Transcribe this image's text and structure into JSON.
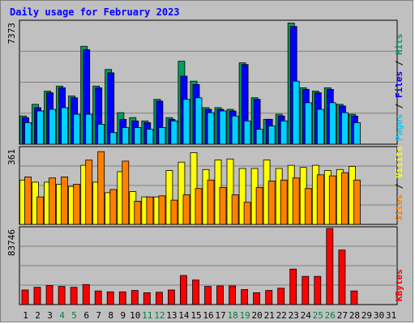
{
  "title": "Daily usage for February 2023",
  "colors": {
    "hits": "#00a060",
    "files": "#0000ff",
    "pages": "#00d0ff",
    "visits": "#ffff00",
    "sites": "#ff8000",
    "kbytes": "#ff0000",
    "weekend_label": "#008040",
    "weekday_label": "#000000"
  },
  "chart_data": [
    {
      "type": "bar",
      "panel": "top",
      "ymax_label": "7373",
      "ymax": 7373,
      "right_labels": [
        {
          "text": "Pages",
          "color": "#00d0ff"
        },
        {
          "text": " / ",
          "color": "#000000"
        },
        {
          "text": "Files",
          "color": "#0000ff"
        },
        {
          "text": " / ",
          "color": "#000000"
        },
        {
          "text": "Hits",
          "color": "#00a060"
        }
      ],
      "series": [
        {
          "name": "Hits",
          "values": [
            1700,
            2400,
            3200,
            3500,
            2900,
            5900,
            3500,
            4500,
            1900,
            1600,
            1400,
            2700,
            1600,
            5000,
            3800,
            2200,
            2200,
            2100,
            4900,
            2800,
            1500,
            1800,
            7300,
            3400,
            3200,
            3400,
            2400,
            1800
          ]
        },
        {
          "name": "Files",
          "values": [
            1600,
            2200,
            3100,
            3400,
            2800,
            5700,
            3400,
            4300,
            1500,
            1400,
            1300,
            2600,
            1500,
            4100,
            3600,
            2100,
            2100,
            2000,
            4800,
            2700,
            1500,
            1700,
            7100,
            3300,
            3100,
            3300,
            2300,
            1700
          ]
        },
        {
          "name": "Pages",
          "values": [
            1300,
            2000,
            2100,
            2200,
            1800,
            1800,
            1200,
            700,
            1000,
            1000,
            900,
            1000,
            1400,
            2700,
            2800,
            1900,
            2000,
            1700,
            1400,
            900,
            1100,
            1400,
            3800,
            2500,
            2100,
            2500,
            1900,
            1300
          ]
        }
      ]
    },
    {
      "type": "bar",
      "panel": "middle",
      "ymax_label": "361",
      "ymax": 361,
      "right_labels": [
        {
          "text": "Sites",
          "color": "#ff8000"
        },
        {
          "text": " / ",
          "color": "#000000"
        },
        {
          "text": "Visits",
          "color": "#ffff00"
        }
      ],
      "series": [
        {
          "name": "Visits",
          "values": [
            210,
            200,
            200,
            190,
            180,
            280,
            200,
            150,
            250,
            155,
            130,
            130,
            255,
            295,
            340,
            260,
            305,
            310,
            265,
            265,
            305,
            265,
            280,
            270,
            280,
            255,
            260,
            275
          ]
        },
        {
          "name": "Sites",
          "values": [
            225,
            130,
            220,
            225,
            190,
            305,
            345,
            165,
            300,
            110,
            130,
            135,
            115,
            140,
            170,
            210,
            175,
            140,
            105,
            175,
            205,
            210,
            220,
            170,
            235,
            230,
            245,
            210
          ]
        }
      ]
    },
    {
      "type": "bar",
      "panel": "bottom",
      "ymax_label": "83746",
      "ymax": 83746,
      "right_labels": [
        {
          "text": "KBytes",
          "color": "#ff0000"
        }
      ],
      "series": [
        {
          "name": "KBytes",
          "values": [
            16000,
            19000,
            21000,
            20000,
            19000,
            22000,
            15000,
            14000,
            14000,
            15500,
            13000,
            13500,
            16000,
            32000,
            27000,
            20000,
            20500,
            20500,
            16500,
            13000,
            15500,
            18000,
            39000,
            31000,
            31000,
            83746,
            60000,
            15000
          ]
        }
      ]
    }
  ],
  "days": [
    "1",
    "2",
    "3",
    "4",
    "5",
    "6",
    "7",
    "8",
    "9",
    "10",
    "11",
    "12",
    "13",
    "14",
    "15",
    "16",
    "17",
    "18",
    "19",
    "20",
    "21",
    "22",
    "23",
    "24",
    "25",
    "26",
    "27",
    "28",
    "29",
    "30",
    "31"
  ],
  "weekend_days": [
    "4",
    "5",
    "11",
    "12",
    "18",
    "19",
    "25",
    "26"
  ]
}
